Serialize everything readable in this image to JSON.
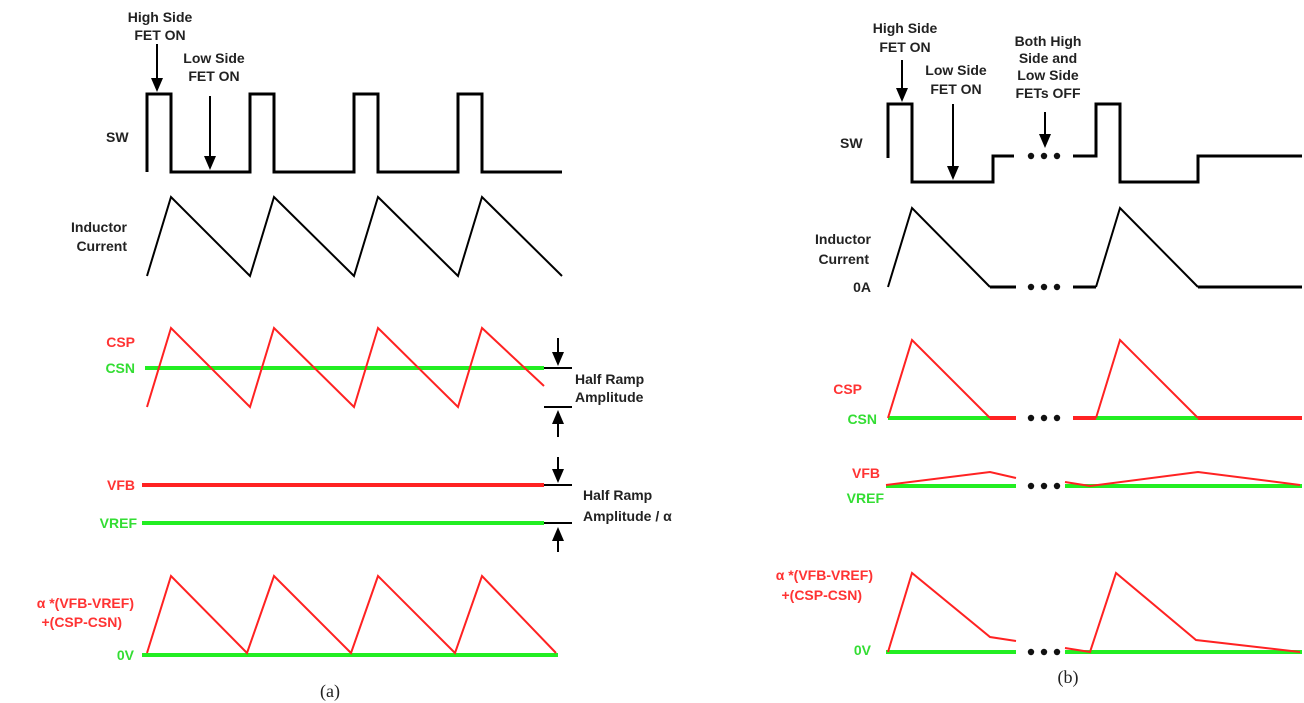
{
  "panel_a": {
    "annotations": {
      "high_side_1": "High Side",
      "high_side_2": "FET ON",
      "low_side_1": "Low Side",
      "low_side_2": "FET ON",
      "half_ramp_1": "Half Ramp",
      "half_ramp_2": "Amplitude",
      "half_ramp_alpha_1": "Half Ramp",
      "half_ramp_alpha_2": "Amplitude / α"
    },
    "labels": {
      "sw": "SW",
      "inductor_1": "Inductor",
      "inductor_2": "Current",
      "csp": "CSP",
      "csn": "CSN",
      "vfb": "VFB",
      "vref": "VREF",
      "sum_1": "α *(VFB-VREF)",
      "sum_2": "+(CSP-CSN)",
      "zero_v": "0V"
    },
    "caption": "(a)"
  },
  "panel_b": {
    "annotations": {
      "high_side_1": "High Side",
      "high_side_2": "FET ON",
      "low_side_1": "Low Side",
      "low_side_2": "FET ON",
      "both_1": "Both High",
      "both_2": "Side and",
      "both_3": "Low Side",
      "both_4": "FETs OFF"
    },
    "labels": {
      "sw": "SW",
      "inductor_1": "Inductor",
      "inductor_2": "Current",
      "zero_a": "0A",
      "csp": "CSP",
      "csn": "CSN",
      "vfb": "VFB",
      "vref": "VREF",
      "sum_1": "α *(VFB-VREF)",
      "sum_2": "+(CSP-CSN)",
      "zero_v": "0V"
    },
    "caption": "(b)"
  },
  "colors": {
    "sense_positive": "#ff2222",
    "sense_negative": "#22ee22",
    "switch_node": "#000000"
  }
}
